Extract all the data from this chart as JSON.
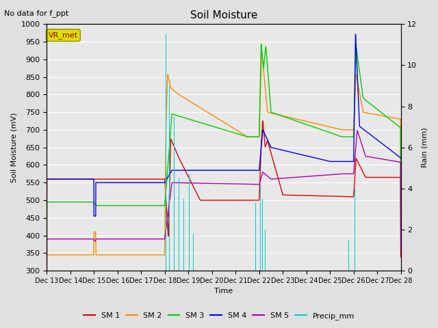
{
  "title": "Soil Moisture",
  "subtitle": "No data for f_ppt",
  "xlabel": "Time",
  "ylabel_left": "Soil Moisture (mV)",
  "ylabel_right": "Rain (mm)",
  "ylim_left": [
    300,
    1000
  ],
  "ylim_right": [
    0,
    12
  ],
  "fig_bg": "#e0e0e0",
  "plot_bg": "#e8e8e8",
  "colors": {
    "SM1": "#dd0000",
    "SM2": "#ff8800",
    "SM3": "#00cc00",
    "SM4": "#0000dd",
    "SM5": "#aa00aa",
    "Precip": "#00cccc"
  },
  "legend_box_text": "VR_met",
  "x_ticks": [
    "Dec 13",
    "Dec 14",
    "Dec 15",
    "Dec 16",
    "Dec 17",
    "Dec 18",
    "Dec 19",
    "Dec 20",
    "Dec 21",
    "Dec 22",
    "Dec 23",
    "Dec 24",
    "Dec 25",
    "Dec 26",
    "Dec 27",
    "Dec 28"
  ]
}
